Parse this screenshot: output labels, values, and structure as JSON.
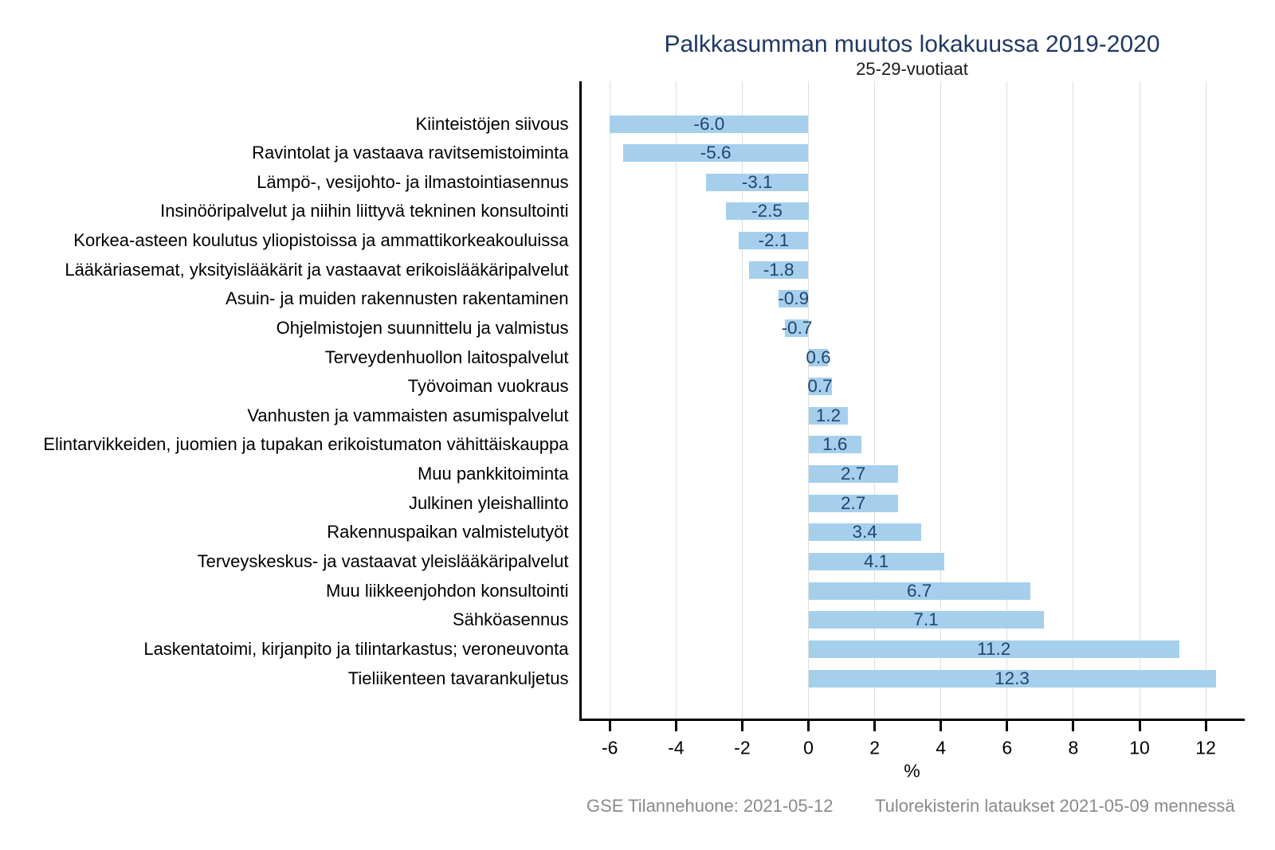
{
  "chart_data": {
    "type": "bar",
    "orientation": "horizontal",
    "title": "Palkkasumman muutos lokakuussa 2019-2020",
    "subtitle": "25-29-vuotiaat",
    "xlabel": "%",
    "categories": [
      "Kiinteistöjen siivous",
      "Ravintolat ja vastaava ravitsemistoiminta",
      "Lämpö-, vesijohto- ja ilmastointiasennus",
      "Insinööripalvelut ja niihin liittyvä tekninen konsultointi",
      "Korkea-asteen koulutus yliopistoissa ja ammattikorkeakouluissa",
      "Lääkäriasemat, yksityislääkärit ja vastaavat erikoislääkäripalvelut",
      "Asuin- ja muiden rakennusten rakentaminen",
      "Ohjelmistojen suunnittelu ja valmistus",
      "Terveydenhuollon laitospalvelut",
      "Työvoiman vuokraus",
      "Vanhusten ja vammaisten asumispalvelut",
      "Elintarvikkeiden, juomien ja tupakan erikoistumaton vähittäiskauppa",
      "Muu pankkitoiminta",
      "Julkinen yleishallinto",
      "Rakennuspaikan valmistelutyöt",
      "Terveyskeskus- ja vastaavat yleislääkäripalvelut",
      "Muu liikkeenjohdon konsultointi",
      "Sähköasennus",
      "Laskentatoimi, kirjanpito ja tilintarkastus; veroneuvonta",
      "Tieliikenteen tavarankuljetus"
    ],
    "values": [
      -6.0,
      -5.6,
      -3.1,
      -2.5,
      -2.1,
      -1.8,
      -0.9,
      -0.7,
      0.6,
      0.7,
      1.2,
      1.6,
      2.7,
      2.7,
      3.4,
      4.1,
      6.7,
      7.1,
      11.2,
      12.3
    ],
    "value_labels": [
      "-6.0",
      "-5.6",
      "-3.1",
      "-2.5",
      "-2.1",
      "-1.8",
      "-0.9",
      "-0.7",
      "0.6",
      "0.7",
      "1.2",
      "1.6",
      "2.7",
      "2.7",
      "3.4",
      "4.1",
      "6.7",
      "7.1",
      "11.2",
      "12.3"
    ],
    "xlim": [
      -6.9,
      13.2
    ],
    "xticks": [
      -6,
      -4,
      -2,
      0,
      2,
      4,
      6,
      8,
      10,
      12
    ],
    "xtick_labels": [
      "-6",
      "-4",
      "-2",
      "0",
      "2",
      "4",
      "6",
      "8",
      "10",
      "12"
    ],
    "grid": true,
    "legend": false,
    "colors": {
      "bar": "#A6CFEC",
      "title": "#1F3864",
      "value_label": "#1C4670",
      "grid": "#DDDDDD",
      "axis": "#000000",
      "text": "#000000",
      "footer": "#8A8A8A"
    }
  },
  "footer": {
    "left": "GSE Tilannehuone: 2021-05-12",
    "right": "Tulorekisterin lataukset 2021-05-09 mennessä"
  }
}
